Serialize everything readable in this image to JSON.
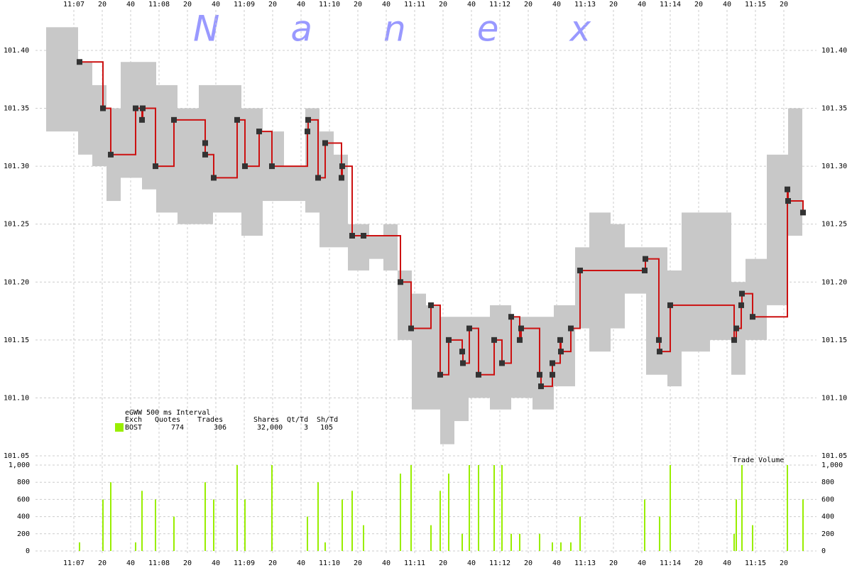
{
  "chart_data": [
    {
      "type": "step",
      "title": "Nanex",
      "xlim": [
        400,
        936
      ],
      "xticks": [
        {
          "value": 420,
          "label": "11:07"
        },
        {
          "value": 440,
          "label": "20"
        },
        {
          "value": 460,
          "label": "40"
        },
        {
          "value": 480,
          "label": "11:08"
        },
        {
          "value": 500,
          "label": "20"
        },
        {
          "value": 520,
          "label": "40"
        },
        {
          "value": 540,
          "label": "11:09"
        },
        {
          "value": 560,
          "label": "20"
        },
        {
          "value": 580,
          "label": "40"
        },
        {
          "value": 600,
          "label": "11:10"
        },
        {
          "value": 620,
          "label": "20"
        },
        {
          "value": 640,
          "label": "40"
        },
        {
          "value": 660,
          "label": "11:11"
        },
        {
          "value": 680,
          "label": "20"
        },
        {
          "value": 700,
          "label": "40"
        },
        {
          "value": 720,
          "label": "11:12"
        },
        {
          "value": 740,
          "label": "20"
        },
        {
          "value": 760,
          "label": "40"
        },
        {
          "value": 780,
          "label": "11:13"
        },
        {
          "value": 800,
          "label": "20"
        },
        {
          "value": 820,
          "label": "40"
        },
        {
          "value": 840,
          "label": "11:14"
        },
        {
          "value": 860,
          "label": "20"
        },
        {
          "value": 880,
          "label": "40"
        },
        {
          "value": 900,
          "label": "11:15"
        },
        {
          "value": 920,
          "label": "20"
        }
      ],
      "ylim": [
        101.05,
        101.43
      ],
      "yticks": [
        {
          "value": 101.05,
          "label": "101.05"
        },
        {
          "value": 101.1,
          "label": "101.10"
        },
        {
          "value": 101.15,
          "label": "101.15"
        },
        {
          "value": 101.2,
          "label": "101.20"
        },
        {
          "value": 101.25,
          "label": "101.25"
        },
        {
          "value": 101.3,
          "label": "101.30"
        },
        {
          "value": 101.35,
          "label": "101.35"
        },
        {
          "value": 101.4,
          "label": "101.40"
        }
      ],
      "grid": true,
      "quotes": {
        "color": "#c8c8c8",
        "bins": [
          400.5,
          423,
          433,
          443,
          453,
          468,
          478,
          493,
          508,
          518,
          538,
          553,
          568,
          583,
          593,
          603,
          613,
          628,
          638,
          648,
          658,
          668,
          678,
          688,
          698,
          713,
          728,
          743,
          758,
          773,
          783,
          798,
          808,
          823,
          838,
          848,
          868,
          883,
          893,
          908,
          923,
          933
        ],
        "low": [
          101.33,
          101.31,
          101.3,
          101.27,
          101.29,
          101.28,
          101.26,
          101.25,
          101.25,
          101.26,
          101.24,
          101.27,
          101.27,
          101.26,
          101.23,
          101.23,
          101.21,
          101.22,
          101.21,
          101.15,
          101.09,
          101.09,
          101.06,
          101.08,
          101.1,
          101.09,
          101.1,
          101.09,
          101.11,
          101.16,
          101.14,
          101.16,
          101.19,
          101.12,
          101.11,
          101.14,
          101.15,
          101.12,
          101.15,
          101.18,
          101.24
        ],
        "high": [
          101.42,
          101.39,
          101.37,
          101.35,
          101.39,
          101.39,
          101.37,
          101.35,
          101.37,
          101.37,
          101.35,
          101.33,
          101.3,
          101.35,
          101.33,
          101.31,
          101.25,
          101.24,
          101.25,
          101.21,
          101.19,
          101.18,
          101.17,
          101.17,
          101.17,
          101.18,
          101.17,
          101.17,
          101.18,
          101.23,
          101.26,
          101.25,
          101.23,
          101.23,
          101.21,
          101.26,
          101.26,
          101.2,
          101.22,
          101.31,
          101.35
        ]
      },
      "x": [
        424,
        440.5,
        446,
        463.5,
        468,
        468.5,
        477.5,
        490.5,
        512.5,
        512.5,
        518.5,
        535,
        540.5,
        550.5,
        559.5,
        584.5,
        585,
        592,
        597,
        608.5,
        609,
        616,
        624,
        650,
        657.5,
        671.5,
        678,
        684,
        693.5,
        694,
        698.5,
        705,
        716,
        721.5,
        728,
        734,
        735,
        748,
        749,
        757,
        757,
        762.5,
        763,
        770,
        776.5,
        822,
        822.5,
        832,
        832.5,
        840,
        885,
        886.5,
        890,
        890.5,
        898,
        922.5,
        923,
        933.5
      ],
      "series": [
        {
          "color": "#cc1111",
          "marker_color": "#333333",
          "values": [
            101.39,
            101.35,
            101.31,
            101.35,
            101.34,
            101.35,
            101.3,
            101.34,
            101.32,
            101.31,
            101.29,
            101.34,
            101.3,
            101.33,
            101.3,
            101.33,
            101.34,
            101.29,
            101.32,
            101.29,
            101.3,
            101.24,
            101.24,
            101.2,
            101.16,
            101.18,
            101.12,
            101.15,
            101.14,
            101.13,
            101.16,
            101.12,
            101.15,
            101.13,
            101.17,
            101.15,
            101.16,
            101.12,
            101.11,
            101.12,
            101.13,
            101.15,
            101.14,
            101.16,
            101.21,
            101.21,
            101.22,
            101.15,
            101.14,
            101.18,
            101.15,
            101.16,
            101.18,
            101.19,
            101.17,
            101.28,
            101.27,
            101.26
          ]
        }
      ],
      "annotations": {
        "interval": "eGWW 500 ms Interval",
        "headers": [
          "Exch",
          "Quotes",
          "Trades",
          "Shares",
          "Qt/Td",
          "Sh/Td"
        ],
        "row": [
          "BOST",
          "774",
          "306",
          "32,000",
          "3",
          "105"
        ],
        "color": "#99ee00"
      }
    },
    {
      "type": "bar",
      "title": "Trade Volume",
      "color": "#99ee00",
      "x": [
        424,
        440.5,
        446,
        463.5,
        468,
        477.5,
        490.5,
        512.5,
        518.5,
        535,
        540.5,
        559.5,
        584.5,
        592,
        597,
        609,
        616,
        624,
        650,
        657.5,
        671.5,
        678,
        684,
        693.5,
        698.5,
        705,
        716,
        721.5,
        728,
        734,
        748,
        757,
        763,
        770,
        776.5,
        822,
        832.5,
        840,
        885,
        886.5,
        890.5,
        898,
        922.5,
        933.5
      ],
      "values": [
        100,
        600,
        800,
        100,
        700,
        600,
        400,
        800,
        600,
        1000,
        600,
        1000,
        400,
        800,
        100,
        600,
        700,
        300,
        900,
        1000,
        300,
        700,
        900,
        200,
        1000,
        1000,
        1000,
        1000,
        200,
        200,
        200,
        100,
        100,
        100,
        400,
        600,
        400,
        1000,
        200,
        600,
        1000,
        300,
        1000,
        600
      ],
      "ylim": [
        0,
        1000
      ],
      "yticks": [
        0,
        200,
        400,
        600,
        800,
        {
          "value": 1000,
          "label": "1,000"
        }
      ]
    }
  ]
}
